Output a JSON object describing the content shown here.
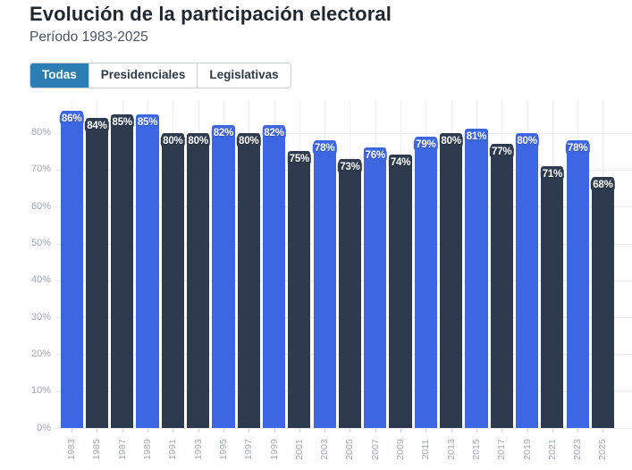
{
  "header": {
    "title": "Evolución de la participación electoral",
    "subtitle": "Período 1983-2025"
  },
  "tabs": [
    {
      "label": "Todas",
      "active": true
    },
    {
      "label": "Presidenciales",
      "active": false
    },
    {
      "label": "Legislativas",
      "active": false
    }
  ],
  "colors": {
    "presidencial": "#3d67e2",
    "legislativa": "#2e3a4d",
    "tab_active": "#2d7eb2",
    "grid": "#ededf0",
    "axis_label": "#a2a8b1"
  },
  "chart_data": {
    "type": "bar",
    "title": "Evolución de la participación electoral",
    "xlabel": "",
    "ylabel": "",
    "categories": [
      "1983",
      "1985",
      "1987",
      "1989",
      "1991",
      "1993",
      "1995",
      "1997",
      "1999",
      "2001",
      "2003",
      "2005",
      "2007",
      "2009",
      "2011",
      "2013",
      "2015",
      "2017",
      "2019",
      "2021",
      "2023",
      "2025"
    ],
    "values": [
      86,
      84,
      85,
      85,
      80,
      80,
      82,
      80,
      82,
      75,
      78,
      73,
      76,
      74,
      79,
      80,
      81,
      77,
      80,
      71,
      78,
      68
    ],
    "kinds": [
      "presidencial",
      "legislativa",
      "legislativa",
      "presidencial",
      "legislativa",
      "legislativa",
      "presidencial",
      "legislativa",
      "presidencial",
      "legislativa",
      "presidencial",
      "legislativa",
      "presidencial",
      "legislativa",
      "presidencial",
      "legislativa",
      "presidencial",
      "legislativa",
      "presidencial",
      "legislativa",
      "presidencial",
      "legislativa"
    ],
    "value_suffix": "%",
    "y_ticks": [
      0,
      10,
      20,
      30,
      40,
      50,
      60,
      70,
      80
    ],
    "ylim": [
      0,
      90
    ],
    "grid": true,
    "legend": false
  }
}
